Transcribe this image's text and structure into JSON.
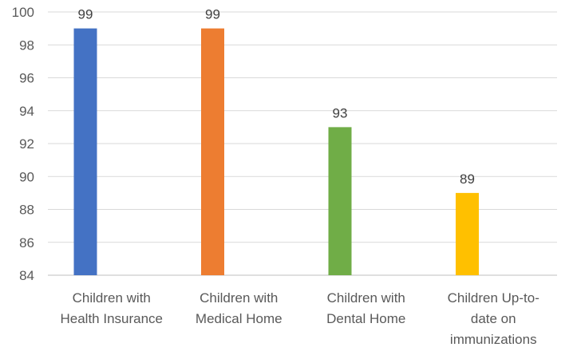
{
  "chart_data": {
    "type": "bar",
    "title": "",
    "xlabel": "",
    "ylabel": "",
    "categories": [
      [
        "Children with",
        "Health Insurance"
      ],
      [
        "Children with",
        "Medical Home"
      ],
      [
        "Children with",
        "Dental Home"
      ],
      [
        "Children Up-to-",
        "date on",
        "immunizations"
      ]
    ],
    "values": [
      99,
      99,
      93,
      89
    ],
    "colors": [
      "#4472C4",
      "#ED7D31",
      "#70AD47",
      "#FFC000"
    ],
    "ylim": [
      84,
      100
    ],
    "yticks": [
      84,
      86,
      88,
      90,
      92,
      94,
      96,
      98,
      100
    ],
    "grid": true,
    "data_labels": true
  }
}
